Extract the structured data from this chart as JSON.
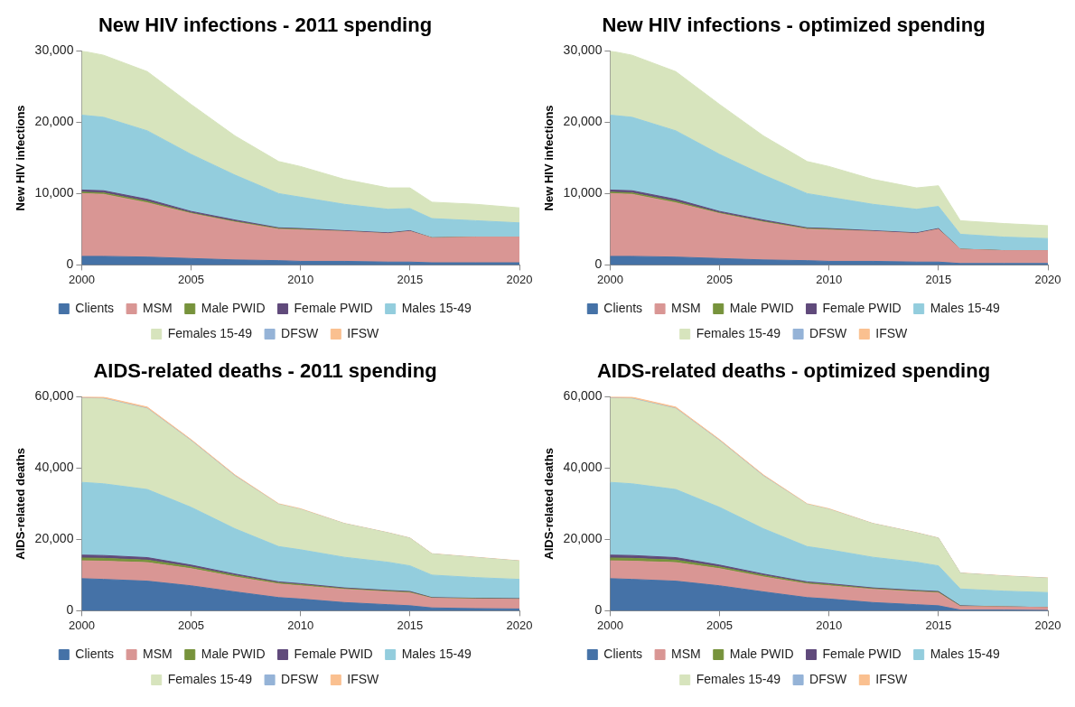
{
  "chart_data": [
    {
      "type": "area",
      "title": "New HIV infections - 2011 spending",
      "ylabel": "New HIV infections",
      "stacked": true,
      "legend": "bottom",
      "grid": false,
      "x": [
        2000,
        2001,
        2003,
        2005,
        2007,
        2009,
        2010,
        2012,
        2014,
        2015,
        2016,
        2018,
        2020
      ],
      "xlim": [
        2000,
        2020
      ],
      "xticks": [
        2000,
        2005,
        2010,
        2015,
        2020
      ],
      "ylim": [
        0,
        30000
      ],
      "yticks": [
        {
          "value": 0,
          "label": "0"
        },
        {
          "value": 10000,
          "label": "10,000"
        },
        {
          "value": 20000,
          "label": "20,000"
        },
        {
          "value": 30000,
          "label": "30,000"
        }
      ],
      "series": [
        {
          "name": "Clients",
          "color": "#4572a7",
          "values": [
            1200,
            1200,
            1100,
            900,
            700,
            600,
            500,
            500,
            400,
            400,
            300,
            300,
            300
          ]
        },
        {
          "name": "MSM",
          "color": "#d99694",
          "values": [
            8800,
            8700,
            7600,
            6300,
            5300,
            4400,
            4400,
            4200,
            4000,
            4300,
            3500,
            3600,
            3600
          ]
        },
        {
          "name": "Male PWID",
          "color": "#77933c",
          "values": [
            200,
            200,
            200,
            100,
            100,
            100,
            100,
            0,
            0,
            0,
            0,
            0,
            0
          ]
        },
        {
          "name": "Female PWID",
          "color": "#604a7b",
          "values": [
            300,
            300,
            300,
            200,
            200,
            100,
            100,
            100,
            100,
            100,
            0,
            0,
            0
          ]
        },
        {
          "name": "Males 15-49",
          "color": "#93cddd",
          "values": [
            10500,
            10300,
            9600,
            8000,
            6300,
            4800,
            4400,
            3700,
            3300,
            3100,
            2700,
            2300,
            2000
          ]
        },
        {
          "name": "Females 15-49",
          "color": "#d7e4bd",
          "values": [
            9000,
            8700,
            8300,
            7000,
            5500,
            4500,
            4300,
            3500,
            3000,
            2900,
            2300,
            2300,
            2100
          ]
        },
        {
          "name": "DFSW",
          "color": "#95b3d7",
          "values": [
            null,
            null,
            null,
            null,
            null,
            null,
            null,
            null,
            null,
            null,
            null,
            null,
            null
          ]
        },
        {
          "name": "IFSW",
          "color": "#fac090",
          "values": [
            null,
            null,
            null,
            null,
            null,
            null,
            null,
            null,
            null,
            null,
            null,
            null,
            null
          ]
        }
      ]
    },
    {
      "type": "area",
      "title": "New HIV infections - optimized spending",
      "ylabel": "New HIV infections",
      "stacked": true,
      "legend": "bottom",
      "grid": false,
      "x": [
        2000,
        2001,
        2003,
        2005,
        2007,
        2009,
        2010,
        2012,
        2014,
        2015,
        2016,
        2018,
        2020
      ],
      "xlim": [
        2000,
        2020
      ],
      "xticks": [
        2000,
        2005,
        2010,
        2015,
        2020
      ],
      "ylim": [
        0,
        30000
      ],
      "yticks": [
        {
          "value": 0,
          "label": "0"
        },
        {
          "value": 10000,
          "label": "10,000"
        },
        {
          "value": 20000,
          "label": "20,000"
        },
        {
          "value": 30000,
          "label": "30,000"
        }
      ],
      "series": [
        {
          "name": "Clients",
          "color": "#4572a7",
          "values": [
            1200,
            1200,
            1100,
            900,
            700,
            600,
            500,
            500,
            400,
            400,
            200,
            200,
            200
          ]
        },
        {
          "name": "MSM",
          "color": "#d99694",
          "values": [
            8800,
            8700,
            7600,
            6300,
            5300,
            4400,
            4400,
            4200,
            4000,
            4600,
            2000,
            1800,
            1800
          ]
        },
        {
          "name": "Male PWID",
          "color": "#77933c",
          "values": [
            200,
            200,
            200,
            100,
            100,
            100,
            100,
            0,
            0,
            0,
            0,
            0,
            0
          ]
        },
        {
          "name": "Female PWID",
          "color": "#604a7b",
          "values": [
            300,
            300,
            300,
            200,
            200,
            100,
            100,
            100,
            100,
            100,
            0,
            0,
            0
          ]
        },
        {
          "name": "Males 15-49",
          "color": "#93cddd",
          "values": [
            10500,
            10300,
            9600,
            8000,
            6300,
            4800,
            4400,
            3700,
            3300,
            3100,
            2100,
            1900,
            1700
          ]
        },
        {
          "name": "Females 15-49",
          "color": "#d7e4bd",
          "values": [
            9000,
            8700,
            8300,
            7000,
            5500,
            4500,
            4300,
            3500,
            3000,
            2900,
            1900,
            1900,
            1800
          ]
        },
        {
          "name": "DFSW",
          "color": "#95b3d7",
          "values": [
            null,
            null,
            null,
            null,
            null,
            null,
            null,
            null,
            null,
            null,
            null,
            null,
            null
          ]
        },
        {
          "name": "IFSW",
          "color": "#fac090",
          "values": [
            null,
            null,
            null,
            null,
            null,
            null,
            null,
            null,
            null,
            null,
            null,
            null,
            null
          ]
        }
      ]
    },
    {
      "type": "area",
      "title": "AIDS-related deaths - 2011 spending",
      "ylabel": "AIDS-related deaths",
      "stacked": true,
      "legend": "bottom",
      "grid": false,
      "x": [
        2000,
        2001,
        2003,
        2005,
        2007,
        2009,
        2010,
        2012,
        2014,
        2015,
        2016,
        2018,
        2020
      ],
      "xlim": [
        2000,
        2020
      ],
      "xticks": [
        2000,
        2005,
        2010,
        2015,
        2020
      ],
      "ylim": [
        0,
        60000
      ],
      "yticks": [
        {
          "value": 0,
          "label": "0"
        },
        {
          "value": 20000,
          "label": "20,000"
        },
        {
          "value": 40000,
          "label": "40,000"
        },
        {
          "value": 60000,
          "label": "60,000"
        }
      ],
      "series": [
        {
          "name": "Clients",
          "color": "#4572a7",
          "values": [
            9000,
            8800,
            8300,
            7000,
            5300,
            3700,
            3300,
            2300,
            1700,
            1400,
            800,
            600,
            500
          ]
        },
        {
          "name": "MSM",
          "color": "#d99694",
          "values": [
            5000,
            5100,
            5200,
            4800,
            4200,
            3800,
            3700,
            3700,
            3600,
            3600,
            2700,
            2700,
            2700
          ]
        },
        {
          "name": "Male PWID",
          "color": "#77933c",
          "values": [
            800,
            800,
            700,
            500,
            400,
            300,
            300,
            200,
            200,
            200,
            100,
            100,
            100
          ]
        },
        {
          "name": "Female PWID",
          "color": "#604a7b",
          "values": [
            800,
            800,
            700,
            500,
            400,
            300,
            300,
            200,
            200,
            200,
            100,
            100,
            100
          ]
        },
        {
          "name": "Males 15-49",
          "color": "#93cddd",
          "values": [
            20400,
            20100,
            19100,
            16200,
            12700,
            9900,
            9500,
            8600,
            7900,
            7200,
            6300,
            5800,
            5400
          ]
        },
        {
          "name": "Females 15-49",
          "color": "#d7e4bd",
          "values": [
            23500,
            23800,
            22600,
            18600,
            14700,
            11800,
            11300,
            9400,
            8200,
            7700,
            5900,
            5600,
            5100
          ]
        },
        {
          "name": "DFSW",
          "color": "#95b3d7",
          "values": [
            100,
            100,
            100,
            100,
            100,
            0,
            0,
            0,
            0,
            0,
            0,
            0,
            0
          ]
        },
        {
          "name": "IFSW",
          "color": "#fac090",
          "values": [
            400,
            400,
            400,
            300,
            300,
            200,
            200,
            100,
            100,
            100,
            100,
            100,
            100
          ]
        }
      ]
    },
    {
      "type": "area",
      "title": "AIDS-related deaths - optimized spending",
      "ylabel": "AIDS-related deaths",
      "stacked": true,
      "legend": "bottom",
      "grid": false,
      "x": [
        2000,
        2001,
        2003,
        2005,
        2007,
        2009,
        2010,
        2012,
        2014,
        2015,
        2016,
        2018,
        2020
      ],
      "xlim": [
        2000,
        2020
      ],
      "xticks": [
        2000,
        2005,
        2010,
        2015,
        2020
      ],
      "ylim": [
        0,
        60000
      ],
      "yticks": [
        {
          "value": 0,
          "label": "0"
        },
        {
          "value": 20000,
          "label": "20,000"
        },
        {
          "value": 40000,
          "label": "40,000"
        },
        {
          "value": 60000,
          "label": "60,000"
        }
      ],
      "series": [
        {
          "name": "Clients",
          "color": "#4572a7",
          "values": [
            9000,
            8800,
            8300,
            7000,
            5300,
            3700,
            3300,
            2300,
            1700,
            1400,
            200,
            200,
            100
          ]
        },
        {
          "name": "MSM",
          "color": "#d99694",
          "values": [
            5000,
            5100,
            5200,
            4800,
            4200,
            3800,
            3700,
            3700,
            3600,
            3600,
            1000,
            900,
            800
          ]
        },
        {
          "name": "Male PWID",
          "color": "#77933c",
          "values": [
            800,
            800,
            700,
            500,
            400,
            300,
            300,
            200,
            200,
            200,
            100,
            0,
            0
          ]
        },
        {
          "name": "Female PWID",
          "color": "#604a7b",
          "values": [
            800,
            800,
            700,
            500,
            400,
            300,
            300,
            200,
            200,
            200,
            100,
            0,
            0
          ]
        },
        {
          "name": "Males 15-49",
          "color": "#93cddd",
          "values": [
            20400,
            20100,
            19100,
            16200,
            12700,
            9900,
            9500,
            8600,
            7900,
            7200,
            4700,
            4400,
            4200
          ]
        },
        {
          "name": "Females 15-49",
          "color": "#d7e4bd",
          "values": [
            23500,
            23800,
            22600,
            18600,
            14700,
            11800,
            11300,
            9400,
            8200,
            7700,
            4400,
            4200,
            4000
          ]
        },
        {
          "name": "DFSW",
          "color": "#95b3d7",
          "values": [
            100,
            100,
            100,
            100,
            100,
            0,
            0,
            0,
            0,
            0,
            0,
            0,
            0
          ]
        },
        {
          "name": "IFSW",
          "color": "#fac090",
          "values": [
            400,
            400,
            400,
            300,
            300,
            200,
            200,
            100,
            100,
            100,
            100,
            100,
            100
          ]
        }
      ]
    }
  ]
}
